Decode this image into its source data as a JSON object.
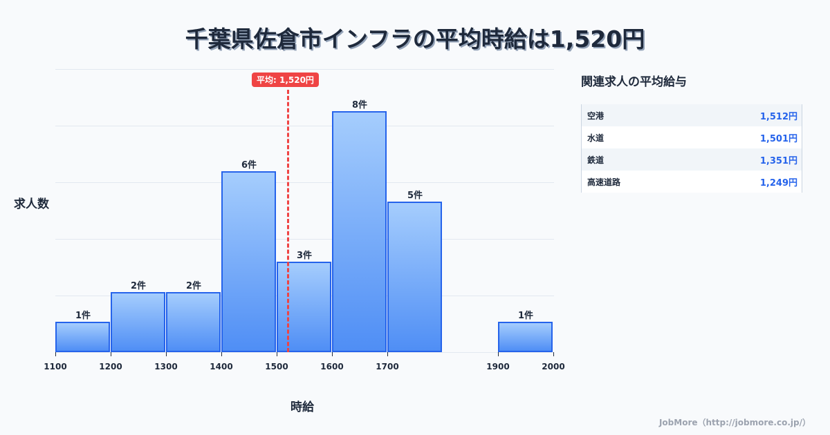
{
  "title": "千葉県佐倉市インフラの平均時給は1,520円",
  "chart_data": {
    "type": "bar",
    "title": "千葉県佐倉市インフラの平均時給は1,520円",
    "xlabel": "時給",
    "ylabel": "求人数",
    "bins": [
      {
        "from": 1100,
        "to": 1200,
        "count": 1,
        "label": "1件"
      },
      {
        "from": 1200,
        "to": 1300,
        "count": 2,
        "label": "2件"
      },
      {
        "from": 1300,
        "to": 1400,
        "count": 2,
        "label": "2件"
      },
      {
        "from": 1400,
        "to": 1500,
        "count": 6,
        "label": "6件"
      },
      {
        "from": 1500,
        "to": 1600,
        "count": 3,
        "label": "3件"
      },
      {
        "from": 1600,
        "to": 1700,
        "count": 8,
        "label": "8件"
      },
      {
        "from": 1700,
        "to": 1800,
        "count": 5,
        "label": "5件"
      },
      {
        "from": 1900,
        "to": 2000,
        "count": 1,
        "label": "1件"
      }
    ],
    "categories": [
      "1100-1200",
      "1200-1300",
      "1300-1400",
      "1400-1500",
      "1500-1600",
      "1600-1700",
      "1700-1800",
      "1900-2000"
    ],
    "values": [
      1,
      2,
      2,
      6,
      3,
      8,
      5,
      1
    ],
    "x_ticks": [
      "1100",
      "1200",
      "1300",
      "1400",
      "1500",
      "1600",
      "1700",
      "1900",
      "2000"
    ],
    "xlim": [
      1100,
      2000
    ],
    "ylim": [
      0,
      9.4
    ],
    "grid": true,
    "average": {
      "value": 1520,
      "label": "平均: 1,520円",
      "color": "#ef4444"
    },
    "bar_color": "#2563eb"
  },
  "side": {
    "title": "関連求人の平均給与",
    "rows": [
      {
        "name": "空港",
        "value": "1,512円"
      },
      {
        "name": "水道",
        "value": "1,501円"
      },
      {
        "name": "鉄道",
        "value": "1,351円"
      },
      {
        "name": "高速道路",
        "value": "1,249円"
      }
    ]
  },
  "footer": "JobMore（http://jobmore.co.jp/）"
}
